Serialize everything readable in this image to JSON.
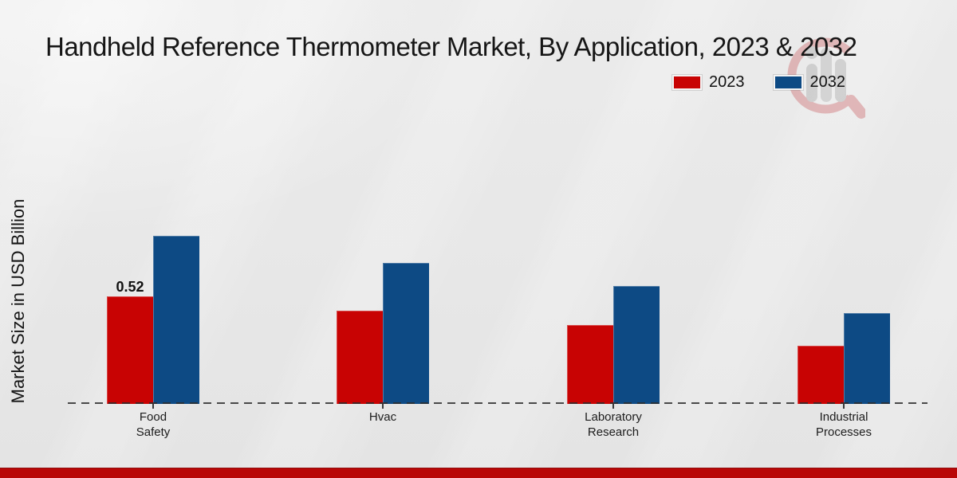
{
  "title": "Handheld Reference Thermometer Market, By Application, 2023 & 2032",
  "y_axis_label": "Market Size in USD Billion",
  "legend": {
    "items": [
      {
        "label": "2023",
        "color": "#c80303"
      },
      {
        "label": "2032",
        "color": "#0d4a84"
      }
    ]
  },
  "chart_data": {
    "type": "bar",
    "title": "Handheld Reference Thermometer Market, By Application, 2023 & 2032",
    "ylabel": "Market Size in USD Billion",
    "xlabel": "",
    "categories": [
      "Food Safety",
      "Hvac",
      "Laboratory Research",
      "Industrial Processes"
    ],
    "category_label_lines": [
      [
        "Food",
        "Safety"
      ],
      [
        "Hvac"
      ],
      [
        "Laboratory",
        "Research"
      ],
      [
        "Industrial",
        "Processes"
      ]
    ],
    "series": [
      {
        "name": "2023",
        "color": "#c80303",
        "values": [
          0.52,
          0.45,
          0.38,
          0.28
        ]
      },
      {
        "name": "2032",
        "color": "#0d4a84",
        "values": [
          0.81,
          0.68,
          0.57,
          0.44
        ]
      }
    ],
    "bar_label": {
      "series_index": 0,
      "category_index": 0,
      "text": "0.52"
    },
    "ylim": [
      0,
      1.4
    ],
    "grid": false,
    "legend_position": "top-right",
    "baseline_style": "dashed"
  },
  "colors": {
    "series_2023": "#c80303",
    "series_2032": "#0d4a84",
    "background": "#e8e8e8",
    "baseline": "#3a3a3a",
    "bottom_band": "#b90707",
    "title_text": "#161616"
  }
}
